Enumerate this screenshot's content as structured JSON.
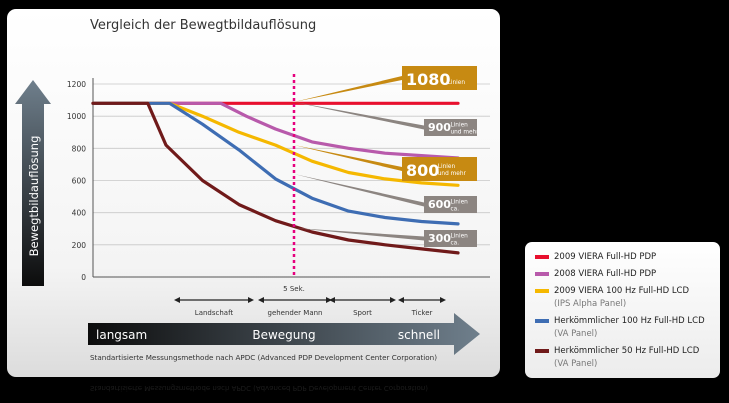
{
  "title": "Vergleich der Bewegtbildauflösung",
  "chart_data": {
    "type": "line",
    "ylabel": "Bewegtbildauflösung",
    "xlabel": "",
    "ylim": [
      0,
      1200
    ],
    "yticks": [
      0,
      200,
      400,
      600,
      800,
      1000,
      1200
    ],
    "grid": true,
    "marker_label": "5 Sek.",
    "categories": [
      "Landschaft",
      "gehender Mann",
      "Sport",
      "Ticker"
    ],
    "series": [
      {
        "name": "2009 VIERA Full-HD PDP",
        "color": "#e8102e",
        "points": [
          [
            0,
            1080
          ],
          [
            1,
            1080
          ]
        ]
      },
      {
        "name": "2008 VIERA Full-HD PDP",
        "color": "#b85aab",
        "points": [
          [
            0,
            1080
          ],
          [
            0.35,
            1080
          ],
          [
            0.42,
            1000
          ],
          [
            0.5,
            920
          ],
          [
            0.6,
            840
          ],
          [
            0.7,
            800
          ],
          [
            0.8,
            770
          ],
          [
            0.9,
            755
          ],
          [
            1,
            740
          ]
        ]
      },
      {
        "name": "2009 VIERA 100 Hz Full-HD LCD",
        "color": "#f5b800",
        "points": [
          [
            0,
            1080
          ],
          [
            0.21,
            1080
          ],
          [
            0.3,
            1000
          ],
          [
            0.4,
            900
          ],
          [
            0.5,
            820
          ],
          [
            0.6,
            720
          ],
          [
            0.7,
            650
          ],
          [
            0.8,
            610
          ],
          [
            0.9,
            585
          ],
          [
            1,
            570
          ]
        ]
      },
      {
        "name": "Herkömmlicher 100 Hz Full-HD LCD",
        "color": "#3e6db3",
        "points": [
          [
            0,
            1080
          ],
          [
            0.21,
            1080
          ],
          [
            0.3,
            950
          ],
          [
            0.4,
            790
          ],
          [
            0.5,
            610
          ],
          [
            0.6,
            490
          ],
          [
            0.7,
            410
          ],
          [
            0.8,
            370
          ],
          [
            0.9,
            345
          ],
          [
            1,
            330
          ]
        ]
      },
      {
        "name": "Herkömmlicher 50 Hz Full-HD LCD",
        "color": "#701a1a",
        "points": [
          [
            0,
            1080
          ],
          [
            0.15,
            1080
          ],
          [
            0.2,
            820
          ],
          [
            0.3,
            600
          ],
          [
            0.4,
            450
          ],
          [
            0.5,
            350
          ],
          [
            0.6,
            280
          ],
          [
            0.7,
            230
          ],
          [
            0.8,
            200
          ],
          [
            0.9,
            175
          ],
          [
            1,
            150
          ]
        ]
      }
    ],
    "callouts": [
      {
        "value": "1080",
        "unit": "Linien",
        "color": "#c78a12"
      },
      {
        "value": "900",
        "unit": "Linien und mehr",
        "color": "#8c8581"
      },
      {
        "value": "800",
        "unit": "Linien und mehr",
        "color": "#c78a12"
      },
      {
        "value": "600",
        "unit": "Linien ca.",
        "color": "#8c8581"
      },
      {
        "value": "300",
        "unit": "Linien ca.",
        "color": "#8c8581"
      }
    ],
    "speed_axis": {
      "left": "langsam",
      "center": "Bewegung",
      "right": "schnell"
    }
  },
  "legend": {
    "items": [
      {
        "label": "2009 VIERA Full-HD PDP",
        "sub": "",
        "color": "#e8102e"
      },
      {
        "label": "2008 VIERA Full-HD PDP",
        "sub": "",
        "color": "#b85aab"
      },
      {
        "label": "2009 VIERA 100 Hz Full-HD LCD",
        "sub": "(IPS Alpha Panel)",
        "color": "#f5b800"
      },
      {
        "label": "Herkömmlicher 100 Hz Full-HD LCD",
        "sub": "(VA Panel)",
        "color": "#3e6db3"
      },
      {
        "label": "Herkömmlicher 50 Hz Full-HD LCD",
        "sub": "(VA Panel)",
        "color": "#701a1a"
      }
    ]
  },
  "footnote": "Standartisierte Messungsmethode nach APDC (Advanced PDP Development Center Corporation)"
}
